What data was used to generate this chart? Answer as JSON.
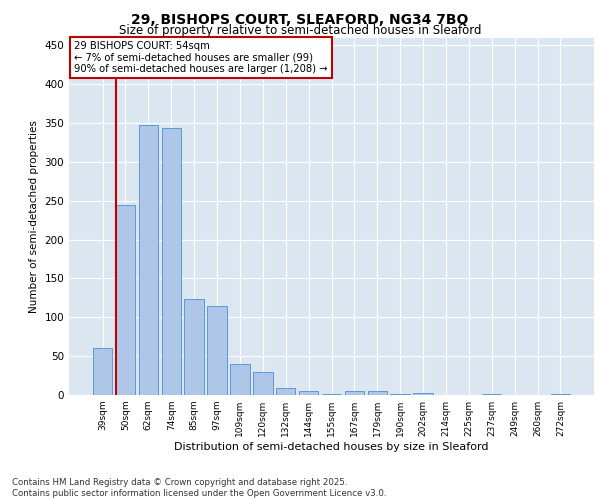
{
  "title_line1": "29, BISHOPS COURT, SLEAFORD, NG34 7BQ",
  "title_line2": "Size of property relative to semi-detached houses in Sleaford",
  "xlabel": "Distribution of semi-detached houses by size in Sleaford",
  "ylabel": "Number of semi-detached properties",
  "categories": [
    "39sqm",
    "50sqm",
    "62sqm",
    "74sqm",
    "85sqm",
    "97sqm",
    "109sqm",
    "120sqm",
    "132sqm",
    "144sqm",
    "155sqm",
    "167sqm",
    "179sqm",
    "190sqm",
    "202sqm",
    "214sqm",
    "225sqm",
    "237sqm",
    "249sqm",
    "260sqm",
    "272sqm"
  ],
  "values": [
    60,
    245,
    348,
    343,
    123,
    115,
    40,
    29,
    9,
    5,
    1,
    5,
    5,
    1,
    3,
    0,
    0,
    1,
    0,
    0,
    1
  ],
  "bar_color": "#aec6e8",
  "bar_edge_color": "#5b9bd5",
  "annotation_text": "29 BISHOPS COURT: 54sqm\n← 7% of semi-detached houses are smaller (99)\n90% of semi-detached houses are larger (1,208) →",
  "annotation_box_edge_color": "#c00000",
  "annotation_box_face_color": "#ffffff",
  "ylim": [
    0,
    460
  ],
  "yticks": [
    0,
    50,
    100,
    150,
    200,
    250,
    300,
    350,
    400,
    450
  ],
  "bg_color": "#dce6f1",
  "footer_text": "Contains HM Land Registry data © Crown copyright and database right 2025.\nContains public sector information licensed under the Open Government Licence v3.0.",
  "vline_x_index": 1,
  "grid_color": "#ffffff",
  "fig_bg_color": "#ffffff"
}
